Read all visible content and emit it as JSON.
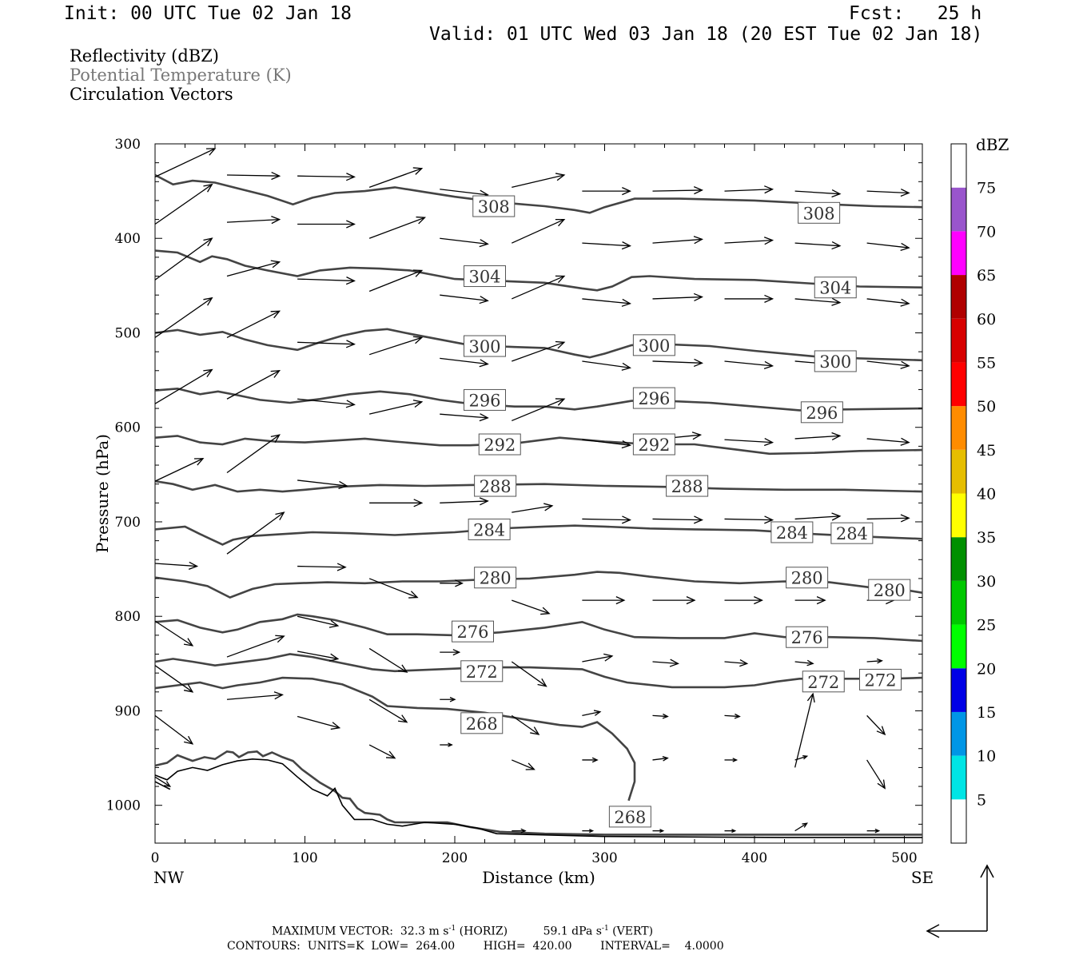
{
  "header": {
    "init": "Init: 00 UTC Tue 02 Jan 18",
    "fcst": "Fcst:   25 h",
    "valid": "Valid: 01 UTC Wed 03 Jan 18 (20 EST Tue 02 Jan 18)"
  },
  "legend": {
    "line1": "Reflectivity (dBZ)",
    "line2": "Potential Temperature (K)",
    "line3": "Circulation Vectors"
  },
  "footer": {
    "line1": "MAXIMUM VECTOR:  32.3 m s",
    "line1_sup1": "-1",
    "line1_mid": " (HORIZ)          59.1 dPa s",
    "line1_sup2": "-1",
    "line1_end": " (VERT)",
    "line2": "CONTOURS:  UNITS=K  LOW=  264.00        HIGH=  420.00        INTERVAL=    4.0000"
  },
  "colorbar": {
    "unit": "dBZ",
    "levels": [
      5,
      10,
      15,
      20,
      25,
      30,
      35,
      40,
      45,
      50,
      55,
      60,
      65,
      70,
      75
    ],
    "colors": [
      "#ffffff",
      "#00e5e5",
      "#0096e6",
      "#0000e6",
      "#00ff00",
      "#00c800",
      "#009000",
      "#ffff00",
      "#e6be00",
      "#ff8c00",
      "#ff0000",
      "#d70000",
      "#b00000",
      "#ff00ff",
      "#9955cc",
      "#ffffff"
    ]
  },
  "chart_data": {
    "type": "cross-section contour",
    "xlabel": "Distance (km)",
    "ylabel": "Pressure (hPa)",
    "xlim": [
      0,
      512
    ],
    "ylim": [
      1040,
      300
    ],
    "xticks": [
      0,
      100,
      200,
      300,
      400,
      500
    ],
    "yticks": [
      300,
      400,
      500,
      600,
      700,
      800,
      900,
      1000
    ],
    "x_end_labels": {
      "left": "NW",
      "right": "SE"
    },
    "contour_labels": [
      {
        "value": "308",
        "x": 226,
        "p": 366
      },
      {
        "value": "308",
        "x": 443,
        "p": 373
      },
      {
        "value": "304",
        "x": 220,
        "p": 440
      },
      {
        "value": "304",
        "x": 454,
        "p": 452
      },
      {
        "value": "300",
        "x": 220,
        "p": 514
      },
      {
        "value": "300",
        "x": 333,
        "p": 513
      },
      {
        "value": "300",
        "x": 454,
        "p": 530
      },
      {
        "value": "296",
        "x": 220,
        "p": 571
      },
      {
        "value": "296",
        "x": 333,
        "p": 569
      },
      {
        "value": "296",
        "x": 445,
        "p": 584
      },
      {
        "value": "292",
        "x": 230,
        "p": 618
      },
      {
        "value": "292",
        "x": 333,
        "p": 618
      },
      {
        "value": "288",
        "x": 227,
        "p": 662
      },
      {
        "value": "288",
        "x": 355,
        "p": 662
      },
      {
        "value": "284",
        "x": 223,
        "p": 708
      },
      {
        "value": "284",
        "x": 425,
        "p": 711
      },
      {
        "value": "284",
        "x": 465,
        "p": 712
      },
      {
        "value": "280",
        "x": 227,
        "p": 759
      },
      {
        "value": "280",
        "x": 435,
        "p": 759
      },
      {
        "value": "280",
        "x": 490,
        "p": 772
      },
      {
        "value": "276",
        "x": 212,
        "p": 816
      },
      {
        "value": "276",
        "x": 435,
        "p": 822
      },
      {
        "value": "272",
        "x": 218,
        "p": 858
      },
      {
        "value": "272",
        "x": 446,
        "p": 869
      },
      {
        "value": "272",
        "x": 484,
        "p": 867
      },
      {
        "value": "268",
        "x": 218,
        "p": 913
      },
      {
        "value": "268",
        "x": 317,
        "p": 1012
      }
    ]
  }
}
